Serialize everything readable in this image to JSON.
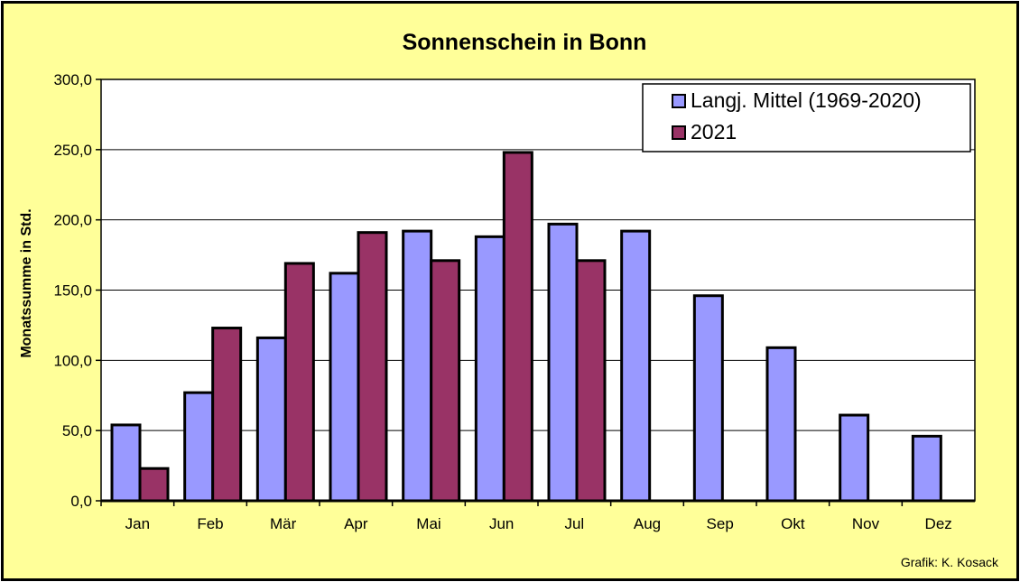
{
  "chart_data": {
    "type": "bar",
    "title": "Sonnenschein in Bonn",
    "ylabel": "Monatssumme in Std.",
    "xlabel": "",
    "ylim": [
      0,
      300
    ],
    "yticks": [
      "0,0",
      "50,0",
      "100,0",
      "150,0",
      "200,0",
      "250,0",
      "300,0"
    ],
    "categories": [
      "Jan",
      "Feb",
      "Mär",
      "Apr",
      "Mai",
      "Jun",
      "Jul",
      "Aug",
      "Sep",
      "Okt",
      "Nov",
      "Dez"
    ],
    "series": [
      {
        "name": "Langj. Mittel (1969-2020)",
        "color": "#9999ff",
        "values": [
          54,
          77,
          116,
          162,
          192,
          188,
          197,
          192,
          146,
          109,
          61,
          46
        ]
      },
      {
        "name": "2021",
        "color": "#993366",
        "values": [
          23,
          123,
          169,
          191,
          171,
          248,
          171,
          null,
          null,
          null,
          null,
          null
        ]
      }
    ],
    "grid": true,
    "legend_position": "top-right"
  },
  "credit": "Grafik:  K. Kosack",
  "colors": {
    "background": "#ffff99",
    "plot_area": "#ffffff"
  }
}
